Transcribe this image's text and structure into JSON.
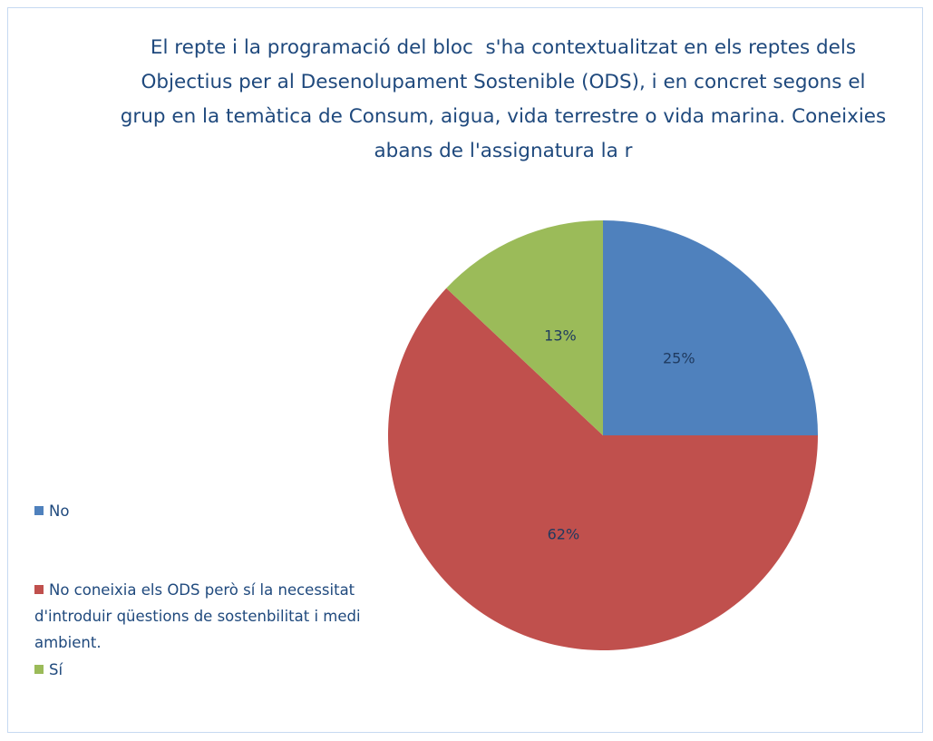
{
  "chart_data": {
    "type": "pie",
    "title": "El repte i la programació del bloc  s'ha contextualitzat en els reptes dels Objectius per al Desenolupament Sostenible (ODS), i en concret segons el grup en la temàtica de Consum, aigua, vida terrestre o vida marina. Coneixies abans de l'assignatura la r",
    "categories": [
      "No",
      "No coneixia els ODS però sí la necessitat d'introduir qüestions de sostenbilitat i medi ambient.",
      "Sí"
    ],
    "values": [
      25,
      62,
      13
    ],
    "value_labels": [
      "25%",
      "62%",
      "13%"
    ],
    "colors": [
      "#4f81bd",
      "#c0504d",
      "#9bbb59"
    ],
    "legend": "left"
  }
}
